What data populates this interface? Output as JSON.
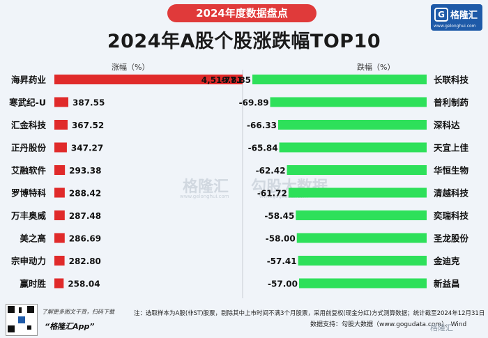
{
  "header": {
    "banner": "2024年度数据盘点",
    "title": "2024年A股个股涨跌幅TOP10",
    "brand_name": "格隆汇",
    "brand_url": "www.gelonghui.com"
  },
  "axis_labels": {
    "gain": "涨幅（%）",
    "loss": "跌幅（%）"
  },
  "chart_data": [
    {
      "type": "bar",
      "title": "涨幅（%）",
      "orientation": "horizontal",
      "color": "#e02a2a",
      "categories": [
        "海昇药业",
        "寒武纪-U",
        "汇金科技",
        "正丹股份",
        "艾融软件",
        "罗博特科",
        "万丰奥威",
        "美之高",
        "宗申动力",
        "赢时胜"
      ],
      "values": [
        4519.81,
        387.55,
        367.52,
        347.27,
        293.38,
        288.42,
        287.48,
        286.69,
        282.8,
        258.04
      ],
      "labels": [
        "4,519.81",
        "387.55",
        "367.52",
        "347.27",
        "293.38",
        "288.42",
        "287.48",
        "286.69",
        "282.80",
        "258.04"
      ]
    },
    {
      "type": "bar",
      "title": "跌幅（%）",
      "orientation": "horizontal",
      "color": "#2ee05a",
      "categories": [
        "长联科技",
        "普利制药",
        "深科达",
        "天宜上佳",
        "华恒生物",
        "清越科技",
        "奕瑞科技",
        "圣龙股份",
        "金迪克",
        "新益昌"
      ],
      "values": [
        -77.85,
        -69.89,
        -66.33,
        -65.84,
        -62.42,
        -61.72,
        -58.45,
        -58.0,
        -57.41,
        -57.0
      ],
      "labels": [
        "-77.85",
        "-69.89",
        "-66.33",
        "-65.84",
        "-62.42",
        "-61.72",
        "-58.45",
        "-58.00",
        "-57.41",
        "-57.00"
      ]
    }
  ],
  "watermark": {
    "text1": "格隆汇",
    "text2": "勾股大数据",
    "url1": "www.gelonghui.com",
    "url2": "www.gogudata.com"
  },
  "footer": {
    "note": "注：选取样本为A股(非ST)股票，剔除其中上市时间不满3个月股票，采用前复权(现金分红)方式测算数据；统计截至2024年12月31日",
    "source": "数据支持：勾股大数据（www.gogudata.com）、Wind",
    "promo_line": "了解更多图文干货，扫码下载",
    "promo_app": "“格隆汇App”",
    "corner": "格隆汇"
  }
}
